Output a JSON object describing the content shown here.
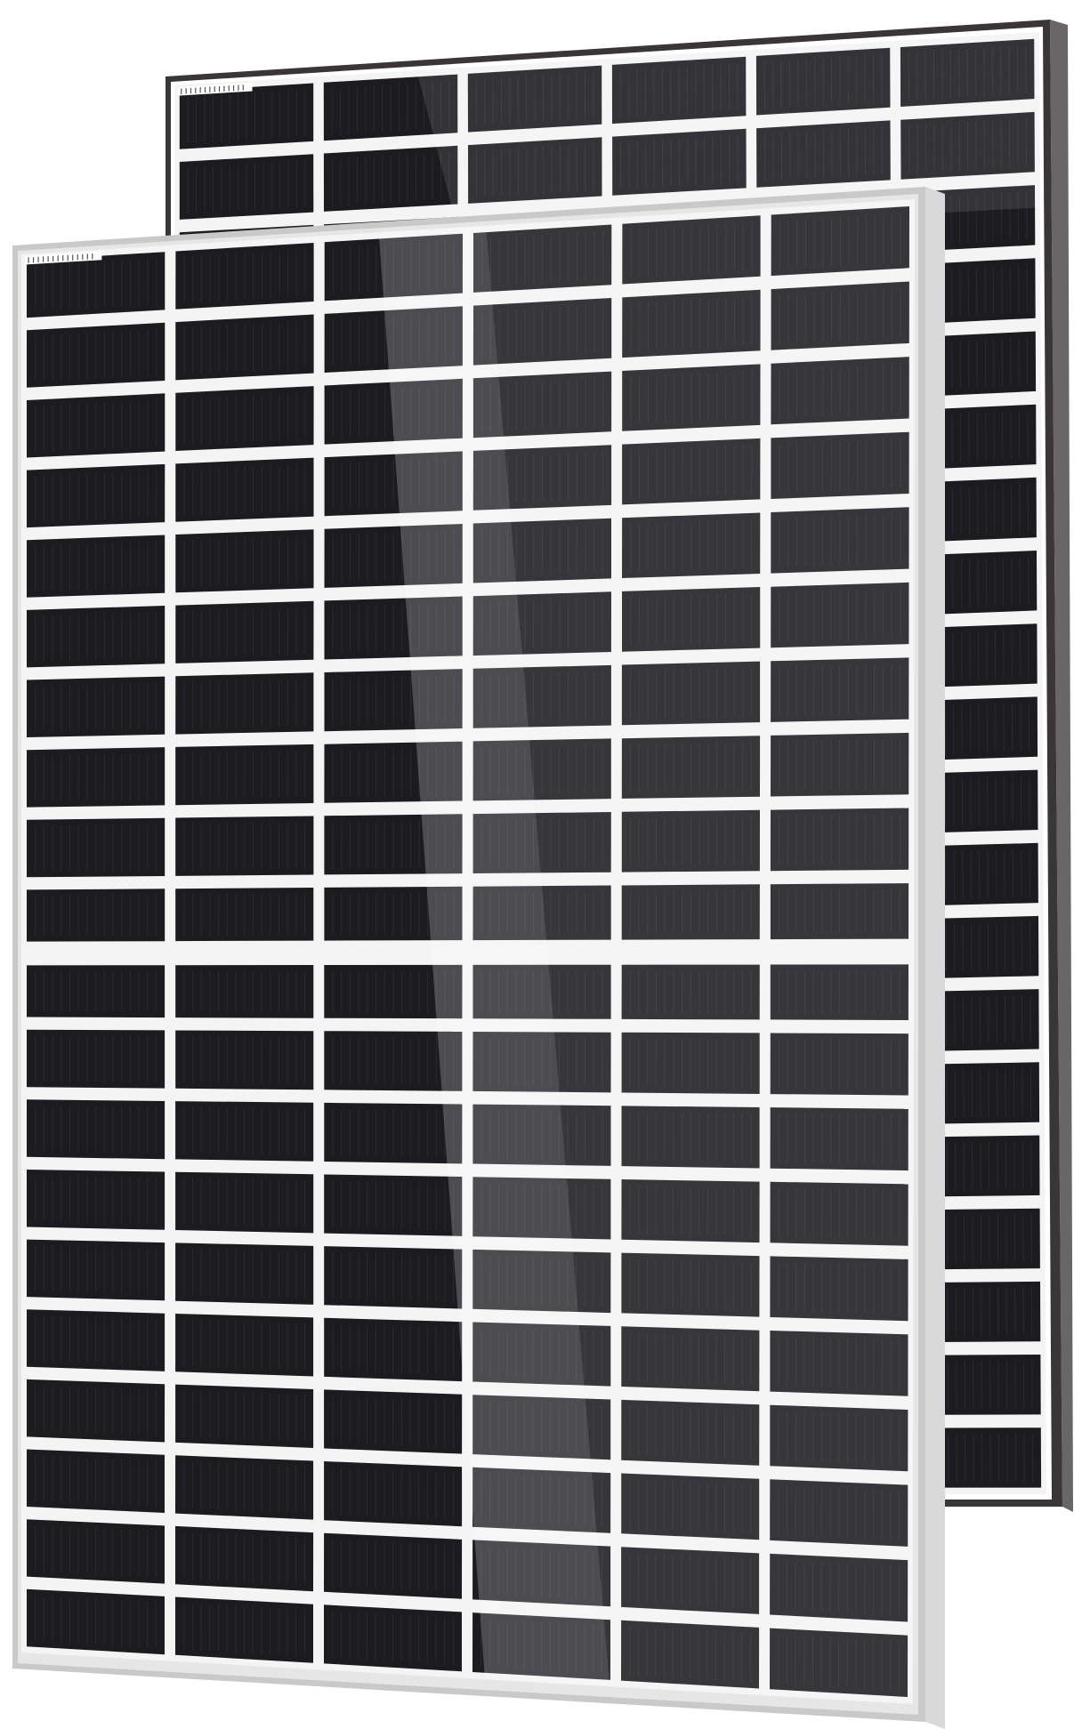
{
  "scene": {
    "subject": "solar-panels",
    "count": 2,
    "back_panel": {
      "frame_color": "#3a3637",
      "frame_edge_color": "#ffffff",
      "cell_color": "#1c1b20",
      "columns": 6,
      "rows": 20,
      "has_label_strip": true
    },
    "front_panel": {
      "frame_color": "#c9c9c9",
      "frame_edge_color": "#e6e6e6",
      "cell_color": "#1c1b20",
      "columns": 6,
      "rows": 20,
      "has_label_strip": true,
      "split_row": 10
    },
    "glare": {
      "color": "#ffffff",
      "opacity": 0.22
    }
  }
}
